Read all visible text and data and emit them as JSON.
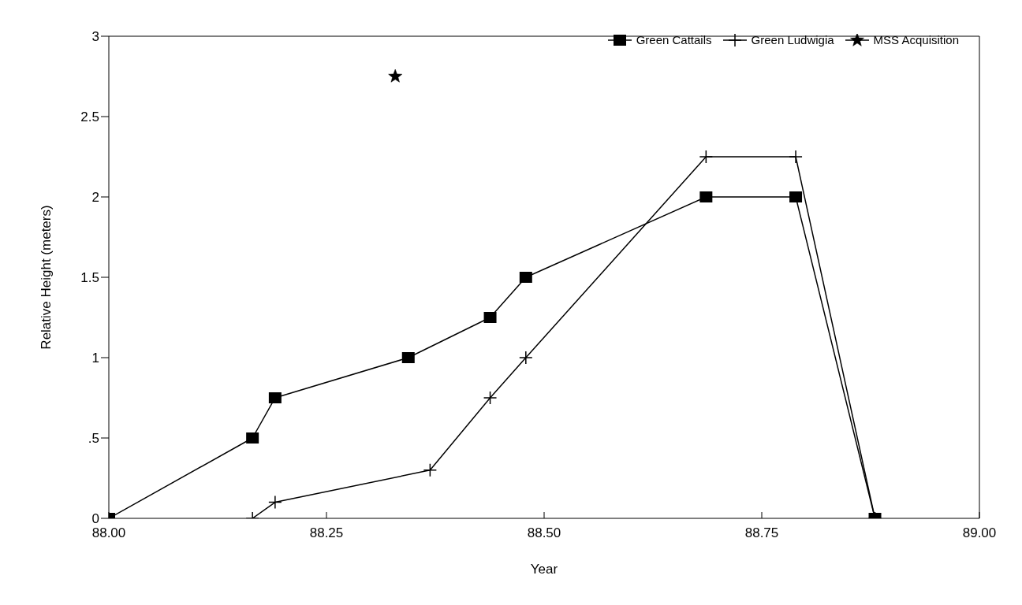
{
  "chart_data": {
    "type": "line",
    "xlabel": "Year",
    "ylabel": "Relative Height (meters)",
    "xlim": [
      88,
      89
    ],
    "xticks": [
      {
        "value": 88,
        "label": "88.00"
      },
      {
        "value": 88.25,
        "label": "88.25"
      },
      {
        "value": 88.5,
        "label": "88.50"
      },
      {
        "value": 88.75,
        "label": "88.75"
      },
      {
        "value": 89,
        "label": "89.00"
      }
    ],
    "ylim": [
      0,
      3
    ],
    "yticks": [
      0,
      {
        "value": 0.5,
        "label": ".5"
      },
      1,
      1.5,
      2,
      2.5,
      3
    ],
    "legend": "top right",
    "line_style": "solid",
    "series": [
      {
        "name": "Green Cattails",
        "color": "#000000",
        "marker": "square",
        "x": [
          88,
          88.165,
          88.191,
          88.344,
          88.438,
          88.479,
          88.686,
          88.789,
          88.88
        ],
        "values": [
          0,
          0.5,
          0.75,
          1,
          1.25,
          1.5,
          2,
          2,
          0
        ]
      },
      {
        "name": "Green Ludwigia",
        "color": "#000000",
        "marker": "cross",
        "x": [
          88.165,
          88.191,
          88.369,
          88.438,
          88.479,
          88.686,
          88.789,
          88.88
        ],
        "values": [
          0,
          0.1,
          0.3,
          0.75,
          1,
          2.25,
          2.25,
          0
        ]
      },
      {
        "name": "MSS Acquisition",
        "color": "#000000",
        "type": "scatter",
        "marker": "star",
        "x": [
          88.329
        ],
        "values": [
          2.75
        ]
      }
    ]
  }
}
